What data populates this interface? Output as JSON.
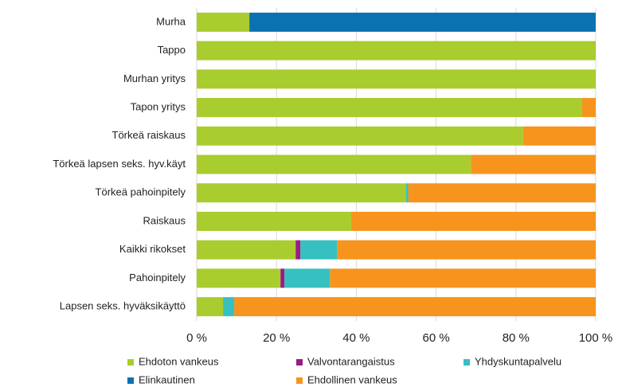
{
  "chart_data": {
    "type": "bar",
    "orientation": "horizontal",
    "stacked": true,
    "categories": [
      "Murha",
      "Tappo",
      "Murhan yritys",
      "Tapon yritys",
      "Törkeä raiskaus",
      "Törkeä lapsen seks. hyv.käyt",
      "Törkeä pahoinpitely",
      "Raiskaus",
      "Kaikki rikokset",
      "Pahoinpitely",
      "Lapsen seks. hyväksikäyttö"
    ],
    "series": [
      {
        "name": "Ehdoton vankeus",
        "color": "#a9cc2e",
        "values": [
          13.2,
          100,
          100,
          96.6,
          81.8,
          68.7,
          52.5,
          38.7,
          24.8,
          21,
          6.6
        ]
      },
      {
        "name": "Valvontarangaistus",
        "color": "#9b1b84",
        "values": [
          0,
          0,
          0,
          0,
          0,
          0,
          0,
          0,
          1.2,
          1,
          0
        ]
      },
      {
        "name": "Yhdyskuntapalvelu",
        "color": "#36c0bf",
        "values": [
          0,
          0,
          0,
          0,
          0,
          0,
          0.5,
          0,
          9.2,
          11.4,
          2.8
        ]
      },
      {
        "name": "Elinkautinen",
        "color": "#0a72b0",
        "values": [
          86.8,
          0,
          0,
          0,
          0,
          0,
          0,
          0,
          0,
          0,
          0
        ]
      },
      {
        "name": "Ehdollinen vankeus",
        "color": "#f7941d",
        "values": [
          0,
          0,
          0,
          3.4,
          18.2,
          31.3,
          47,
          61.3,
          64.8,
          66.6,
          90.6
        ]
      }
    ],
    "xlim": [
      0,
      100
    ],
    "xticks": [
      {
        "value": 0,
        "label": "0 %"
      },
      {
        "value": 20,
        "label": "20 %"
      },
      {
        "value": 40,
        "label": "40 %"
      },
      {
        "value": 60,
        "label": "60 %"
      },
      {
        "value": 80,
        "label": "80 %"
      },
      {
        "value": 100,
        "label": "100 %"
      }
    ],
    "grid": true,
    "legend": "bottom"
  }
}
